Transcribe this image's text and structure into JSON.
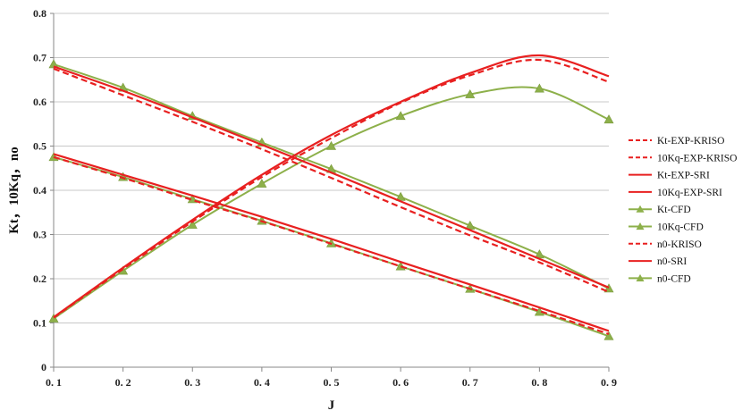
{
  "chart_data": {
    "type": "line",
    "title": "",
    "xlabel": "J",
    "ylabel": "Kt，10Kq，no",
    "xlim": [
      0.1,
      0.9
    ],
    "ylim": [
      0,
      0.8
    ],
    "x_ticks": [
      "0. 1",
      "0. 2",
      "0. 3",
      "0. 4",
      "0. 5",
      "0. 6",
      "0. 7",
      "0. 8",
      "0. 9"
    ],
    "y_ticks": [
      "0",
      "0.1",
      "0.2",
      "0.3",
      "0.4",
      "0.5",
      "0.6",
      "0.7",
      "0.8"
    ],
    "grid": "horizontal",
    "legend_position": "right",
    "x": [
      0.1,
      0.2,
      0.3,
      0.4,
      0.5,
      0.6,
      0.7,
      0.8,
      0.9
    ],
    "series": [
      {
        "name": "Kt-EXP-KRISO",
        "color": "#e82020",
        "style": "dashed",
        "marker": "none",
        "values": [
          0.475,
          0.428,
          0.378,
          0.33,
          0.279,
          0.228,
          0.177,
          0.127,
          0.075
        ]
      },
      {
        "name": "10Kq-EXP-KRISO",
        "color": "#e82020",
        "style": "dashed",
        "marker": "none",
        "values": [
          0.675,
          0.615,
          0.555,
          0.493,
          0.428,
          0.362,
          0.298,
          0.237,
          0.17
        ]
      },
      {
        "name": "Kt-EXP-SRI",
        "color": "#e82020",
        "style": "solid",
        "marker": "none",
        "values": [
          0.482,
          0.435,
          0.388,
          0.34,
          0.29,
          0.238,
          0.187,
          0.135,
          0.082
        ]
      },
      {
        "name": "10Kq-EXP-SRI",
        "color": "#e82020",
        "style": "solid",
        "marker": "none",
        "values": [
          0.68,
          0.625,
          0.565,
          0.503,
          0.44,
          0.375,
          0.31,
          0.245,
          0.18
        ]
      },
      {
        "name": "Kt-CFD",
        "color": "#8db04a",
        "style": "solid",
        "marker": "triangle",
        "values": [
          0.475,
          0.43,
          0.38,
          0.331,
          0.28,
          0.228,
          0.177,
          0.125,
          0.07
        ]
      },
      {
        "name": "10Kq-CFD",
        "color": "#8db04a",
        "style": "solid",
        "marker": "triangle",
        "values": [
          0.685,
          0.632,
          0.568,
          0.508,
          0.448,
          0.385,
          0.32,
          0.255,
          0.178
        ]
      },
      {
        "name": "n0-KRISO",
        "color": "#e82020",
        "style": "dashed",
        "marker": "none",
        "values": [
          0.112,
          0.222,
          0.329,
          0.43,
          0.518,
          0.598,
          0.66,
          0.695,
          0.645
        ]
      },
      {
        "name": "n0-SRI",
        "color": "#e82020",
        "style": "solid",
        "marker": "none",
        "values": [
          0.113,
          0.225,
          0.333,
          0.435,
          0.525,
          0.6,
          0.665,
          0.705,
          0.658
        ]
      },
      {
        "name": "n0-CFD",
        "color": "#8db04a",
        "style": "solid",
        "marker": "triangle",
        "values": [
          0.11,
          0.218,
          0.322,
          0.415,
          0.5,
          0.568,
          0.617,
          0.63,
          0.56
        ]
      }
    ]
  }
}
